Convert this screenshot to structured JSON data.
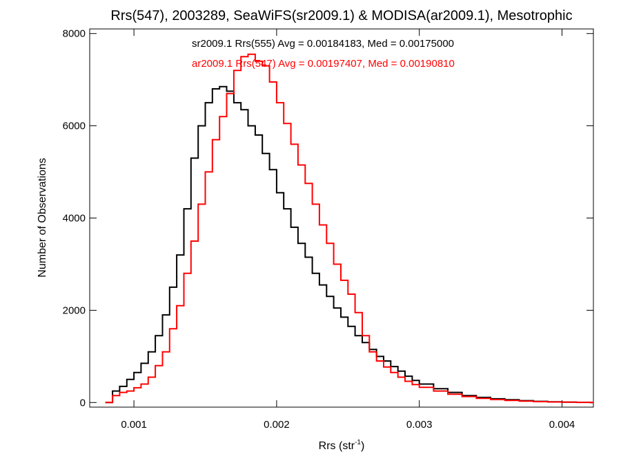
{
  "chart_data": {
    "type": "line",
    "step": true,
    "title": "Rrs(547), 2003289, SeaWiFS(sr2009.1) & MODISA(ar2009.1), Mesotrophic",
    "xlabel": "Rrs (str",
    "xlabel_sup": "-1",
    "xlabel_close": ")",
    "ylabel": "Number of Observations",
    "xlim": [
      0.00069,
      0.00422
    ],
    "ylim": [
      -100,
      8100
    ],
    "xticks": [
      0.001,
      0.002,
      0.003,
      0.004
    ],
    "xtick_labels": [
      "0.001",
      "0.002",
      "0.003",
      "0.004"
    ],
    "yticks": [
      0,
      2000,
      4000,
      6000,
      8000
    ],
    "ytick_labels": [
      "0",
      "2000",
      "4000",
      "6000",
      "8000"
    ],
    "grid": false,
    "annotations": [
      {
        "text": "sr2009.1 Rrs(555) Avg = 0.00184183, Med = 0.00175000",
        "color": "#000000"
      },
      {
        "text": "ar2009.1 Rrs(547) Avg = 0.00197407, Med = 0.00190810",
        "color": "#ff0000"
      }
    ],
    "series": [
      {
        "color": "#000000",
        "x": [
          0.0008,
          0.00085,
          0.0009,
          0.00095,
          0.001,
          0.00105,
          0.0011,
          0.00115,
          0.0012,
          0.00125,
          0.0013,
          0.00135,
          0.0014,
          0.00145,
          0.0015,
          0.00155,
          0.0016,
          0.00165,
          0.0017,
          0.00175,
          0.0018,
          0.00185,
          0.0019,
          0.00195,
          0.002,
          0.00205,
          0.0021,
          0.00215,
          0.0022,
          0.00225,
          0.0023,
          0.00235,
          0.0024,
          0.00245,
          0.0025,
          0.00255,
          0.0026,
          0.00265,
          0.0027,
          0.00275,
          0.0028,
          0.00285,
          0.0029,
          0.00295,
          0.003,
          0.0031,
          0.0032,
          0.0033,
          0.0034,
          0.0035,
          0.0036,
          0.0037,
          0.0038,
          0.0039,
          0.004,
          0.0041,
          0.0042
        ],
        "y": [
          0,
          250,
          350,
          500,
          650,
          850,
          1100,
          1450,
          1900,
          2500,
          3200,
          4200,
          5300,
          6000,
          6500,
          6800,
          6850,
          6750,
          6500,
          6350,
          6000,
          5800,
          5400,
          5050,
          4550,
          4200,
          3800,
          3450,
          3150,
          2800,
          2550,
          2300,
          2050,
          1850,
          1650,
          1450,
          1300,
          1150,
          1000,
          900,
          780,
          680,
          570,
          480,
          400,
          300,
          220,
          150,
          110,
          80,
          60,
          40,
          25,
          15,
          8,
          4,
          0
        ]
      },
      {
        "color": "#ff0000",
        "x": [
          0.0008,
          0.00085,
          0.0009,
          0.00095,
          0.001,
          0.00105,
          0.0011,
          0.00115,
          0.0012,
          0.00125,
          0.0013,
          0.00135,
          0.0014,
          0.00145,
          0.0015,
          0.00155,
          0.0016,
          0.00165,
          0.0017,
          0.00175,
          0.0018,
          0.00185,
          0.0019,
          0.00195,
          0.002,
          0.00205,
          0.0021,
          0.00215,
          0.0022,
          0.00225,
          0.0023,
          0.00235,
          0.0024,
          0.00245,
          0.0025,
          0.00255,
          0.0026,
          0.00265,
          0.0027,
          0.00275,
          0.0028,
          0.00285,
          0.0029,
          0.00295,
          0.003,
          0.0031,
          0.0032,
          0.0033,
          0.0034,
          0.0035,
          0.0036,
          0.0037,
          0.0038,
          0.0039,
          0.004,
          0.0041,
          0.0042
        ],
        "y": [
          0,
          150,
          220,
          250,
          320,
          400,
          550,
          800,
          1100,
          1600,
          2100,
          2800,
          3500,
          4300,
          5000,
          5700,
          6200,
          6700,
          7200,
          7500,
          7550,
          7400,
          7300,
          6950,
          6500,
          6050,
          5600,
          5150,
          4750,
          4300,
          3850,
          3450,
          3000,
          2650,
          2350,
          1950,
          1450,
          1100,
          900,
          770,
          650,
          550,
          460,
          390,
          330,
          250,
          180,
          130,
          90,
          65,
          45,
          30,
          20,
          12,
          7,
          3,
          0
        ]
      }
    ]
  }
}
